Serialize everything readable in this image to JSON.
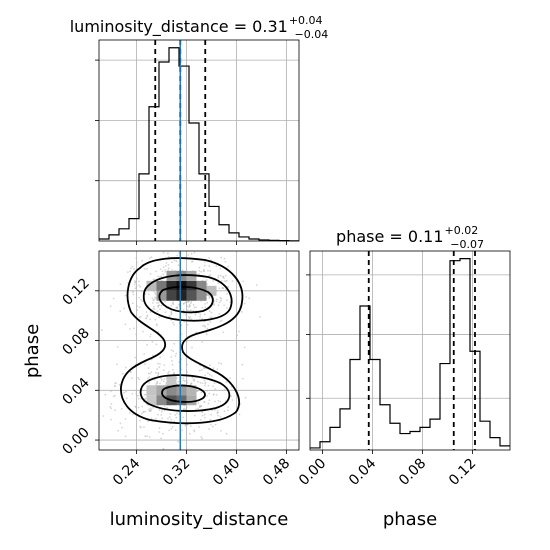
{
  "chart_data": [
    {
      "type": "histogram",
      "parameter": "luminosity_distance",
      "title_main": "luminosity_distance = 0.31",
      "title_sup": "+0.04",
      "title_sub": "−0.04",
      "xlim": [
        0.18,
        0.5
      ],
      "bins": [
        0.18,
        0.196,
        0.212,
        0.228,
        0.244,
        0.26,
        0.276,
        0.292,
        0.308,
        0.324,
        0.34,
        0.356,
        0.372,
        0.388,
        0.404,
        0.42,
        0.436,
        0.452,
        0.468,
        0.484,
        0.5
      ],
      "counts": [
        1,
        3,
        6,
        11,
        33,
        66,
        88,
        95,
        86,
        58,
        33,
        17,
        8,
        4,
        2,
        1,
        0.5,
        0.3,
        0.2,
        0.1
      ],
      "quantiles": [
        0.27,
        0.31,
        0.35
      ],
      "truth": 0.31,
      "grid": true
    },
    {
      "type": "histogram",
      "parameter": "phase",
      "title_main": "phase = 0.11",
      "title_sup": "+0.02",
      "title_sub": "−0.07",
      "xlim": [
        -0.01,
        0.15
      ],
      "bins": [
        -0.01,
        -0.002,
        0.006,
        0.014,
        0.022,
        0.03,
        0.038,
        0.046,
        0.054,
        0.062,
        0.07,
        0.078,
        0.086,
        0.094,
        0.102,
        0.11,
        0.118,
        0.126,
        0.134,
        0.142,
        0.15
      ],
      "counts": [
        1,
        4,
        11,
        20,
        44,
        70,
        44,
        22,
        13,
        8,
        9,
        11,
        15,
        42,
        92,
        93,
        48,
        14,
        6,
        2
      ],
      "quantiles": [
        0.037,
        0.105,
        0.122
      ],
      "grid": true
    },
    {
      "type": "contour",
      "x_parameter": "luminosity_distance",
      "y_parameter": "phase",
      "xlim": [
        0.18,
        0.5
      ],
      "ylim": [
        -0.008,
        0.152
      ],
      "truth_x": 0.31,
      "modes": [
        {
          "center": [
            0.31,
            0.117
          ],
          "weight": "high"
        },
        {
          "center": [
            0.3,
            0.037
          ],
          "weight": "medium"
        }
      ]
    }
  ],
  "axes": {
    "x_main_label": "luminosity_distance",
    "x_phase_label": "phase",
    "y_main_label": "phase",
    "x_ticks_lumi": [
      "0.24",
      "0.32",
      "0.40",
      "0.48"
    ],
    "x_ticks_phase": [
      "0.00",
      "0.04",
      "0.08",
      "0.12"
    ],
    "y_ticks_phase": [
      "0.00",
      "0.04",
      "0.08",
      "0.12"
    ]
  },
  "colors": {
    "line": "#000000",
    "truth": "#1f77b4",
    "grid": "#b0b0b0",
    "scatter": "#b4b4b4"
  }
}
